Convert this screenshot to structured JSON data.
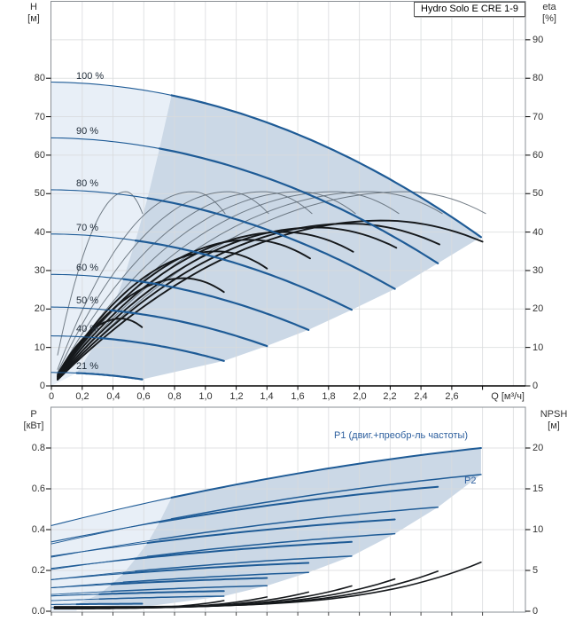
{
  "title": "Hydro Solo E CRE 1-9",
  "top_chart": {
    "y_left": {
      "name": "H",
      "unit": "[м]",
      "ticks": [
        "80",
        "70",
        "60",
        "50",
        "40",
        "30",
        "20",
        "10",
        "0"
      ]
    },
    "y_right": {
      "name": "eta",
      "unit": "[%]",
      "ticks": [
        "90",
        "80",
        "70",
        "60",
        "50",
        "40",
        "30",
        "20",
        "10",
        "0"
      ]
    },
    "x_axis": {
      "unit_label": "Q [м³/ч]",
      "ticks": [
        "0",
        "0,2",
        "0,4",
        "0,6",
        "0,8",
        "1,0",
        "1,2",
        "1,4",
        "1,6",
        "1,8",
        "2,0",
        "2,2",
        "2,4",
        "2,6"
      ]
    },
    "speed_labels": [
      "100 %",
      "90 %",
      "80 %",
      "70 %",
      "60 %",
      "50 %",
      "40 %",
      "21 %"
    ]
  },
  "bottom_chart": {
    "y_left": {
      "name": "P",
      "unit": "[кВт]",
      "ticks": [
        "0.8",
        "0.6",
        "0.4",
        "0.2",
        "0.0"
      ]
    },
    "y_right": {
      "name": "NPSH",
      "unit": "[м]",
      "ticks": [
        "20",
        "15",
        "10",
        "5",
        "0"
      ]
    },
    "curve_labels": {
      "p1": "P1 (двиг.+преобр-ль частоты)",
      "p2": "P2"
    }
  },
  "chart_data": {
    "type": "line",
    "title": "Hydro Solo E CRE 1-9",
    "x": {
      "label": "Q [м³/ч]",
      "min": 0,
      "max": 3.08,
      "tick_step": 0.2,
      "last_labeled_tick": 2.6
    },
    "y_head": {
      "label": "H [м]",
      "min": 0,
      "max": 100,
      "tick_step": 10
    },
    "y_eta": {
      "label": "eta [%]",
      "min": 0,
      "max": 100,
      "tick_step": 10
    },
    "y_power": {
      "label": "P [кВт]",
      "min": 0,
      "max": 1.0,
      "tick_step": 0.2
    },
    "y_npsh": {
      "label": "NPSH [м]",
      "min": 0,
      "max": 25,
      "tick_step": 5
    },
    "speeds_pct": [
      100,
      90,
      80,
      70,
      60,
      50,
      40,
      21
    ],
    "series": [
      {
        "pct": 100,
        "s": 1.0,
        "h0": 79.0,
        "q_end": 2.79,
        "h_end": 38.7,
        "eta_peak": 50.5,
        "eta_total_peak": 43.0,
        "p1_start": 0.42,
        "p1_end": 0.8,
        "p2_start": 0.33,
        "p2_end": 0.67,
        "npsh_end": 6.0
      },
      {
        "pct": 90,
        "s": 0.9,
        "h0": 64.5,
        "q_end": 2.51,
        "h_end": 31.9,
        "eta_peak": 50.5,
        "eta_total_peak": 42.2,
        "p1_start": 0.34,
        "p1_end": 0.61,
        "p2_start": 0.265,
        "p2_end": 0.51,
        "npsh_end": 4.9
      },
      {
        "pct": 80,
        "s": 0.8,
        "h0": 51.0,
        "q_end": 2.23,
        "h_end": 25.2,
        "eta_peak": 50.5,
        "eta_total_peak": 41.2,
        "p1_start": 0.27,
        "p1_end": 0.45,
        "p2_start": 0.205,
        "p2_end": 0.38,
        "npsh_end": 3.95
      },
      {
        "pct": 70,
        "s": 0.7,
        "h0": 39.5,
        "q_end": 1.95,
        "h_end": 19.8,
        "eta_peak": 50.5,
        "eta_total_peak": 40.0,
        "p1_start": 0.21,
        "p1_end": 0.34,
        "p2_start": 0.155,
        "p2_end": 0.27,
        "npsh_end": 3.1
      },
      {
        "pct": 60,
        "s": 0.6,
        "h0": 29.0,
        "q_end": 1.67,
        "h_end": 14.6,
        "eta_peak": 50.5,
        "eta_total_peak": 38.0,
        "p1_start": 0.155,
        "p1_end": 0.237,
        "p2_start": 0.115,
        "p2_end": 0.19,
        "npsh_end": 2.35
      },
      {
        "pct": 50,
        "s": 0.5,
        "h0": 20.5,
        "q_end": 1.4,
        "h_end": 10.4,
        "eta_peak": 50.5,
        "eta_total_peak": 35.0,
        "p1_start": 0.115,
        "p1_end": 0.163,
        "p2_start": 0.082,
        "p2_end": 0.125,
        "npsh_end": 1.75
      },
      {
        "pct": 40,
        "s": 0.4,
        "h0": 13.0,
        "q_end": 1.12,
        "h_end": 6.5,
        "eta_peak": 50.5,
        "eta_total_peak": 28.0,
        "p1_start": 0.075,
        "p1_end": 0.099,
        "p2_start": 0.052,
        "p2_end": 0.074,
        "npsh_end": 1.3
      },
      {
        "pct": 21,
        "s": 0.21,
        "h0": 3.5,
        "q_end": 0.59,
        "h_end": 1.7,
        "eta_peak": 50.5,
        "eta_total_peak": 17.5,
        "p1_start": 0.033,
        "p1_end": 0.037,
        "p2_start": 0.018,
        "p2_end": 0.021,
        "npsh_end": 0.5
      }
    ],
    "model": {
      "head_curve": "H(Q) = h0 - 0.5*s*Q - 5*Q^2",
      "min_flow_q_factor": 0.78,
      "eta_peak_q_factor": 2.3,
      "eta_end_q_factor": 2.82,
      "eta_fall_asym": 2.2,
      "eta_total_peak_q_factor": 2.15,
      "eta_total_end_q_factor": 2.8,
      "eta_total_fall_asym": 1.4,
      "p_shape_u": [
        1.4,
        -0.4
      ],
      "npsh_base": 0.3,
      "npsh_s2_coef": 0.25,
      "npsh_exponent": 4
    },
    "colors": {
      "curve_blue": "#1E5B96",
      "fill_light": "#E8EFF7",
      "fill_dark": "#CBD8E6",
      "eta_gray": "#5d6873",
      "curve_black": "#15181b",
      "label_blue": "#2d5f9e",
      "grid": "#d9dbdd",
      "frame": "#8a8f94"
    }
  }
}
